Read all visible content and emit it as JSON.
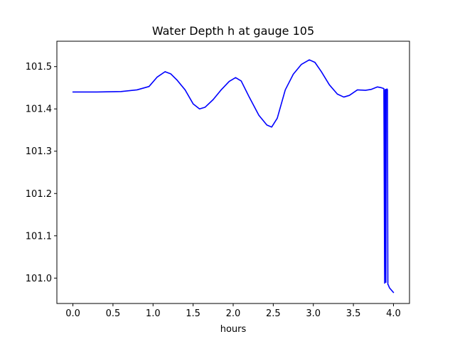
{
  "chart_data": {
    "type": "line",
    "title": "Water Depth h at gauge 105",
    "xlabel": "hours",
    "ylabel": "",
    "xlim": [
      -0.2,
      4.2
    ],
    "ylim": [
      100.94,
      101.56
    ],
    "xticks": [
      0.0,
      0.5,
      1.0,
      1.5,
      2.0,
      2.5,
      3.0,
      3.5,
      4.0
    ],
    "xtick_labels": [
      "0.0",
      "0.5",
      "1.0",
      "1.5",
      "2.0",
      "2.5",
      "3.0",
      "3.5",
      "4.0"
    ],
    "yticks": [
      101.0,
      101.1,
      101.2,
      101.3,
      101.4,
      101.5
    ],
    "ytick_labels": [
      "101.0",
      "101.1",
      "101.2",
      "101.3",
      "101.4",
      "101.5"
    ],
    "grid": false,
    "legend": "none",
    "line_color": "#0000ff",
    "series": [
      {
        "x": [
          0.0,
          0.3,
          0.6,
          0.8,
          0.95,
          1.05,
          1.15,
          1.22,
          1.3,
          1.4,
          1.5,
          1.58,
          1.65,
          1.75,
          1.85,
          1.95,
          2.03,
          2.1,
          2.2,
          2.32,
          2.42,
          2.48,
          2.55,
          2.65,
          2.75,
          2.85,
          2.95,
          3.02,
          3.1,
          3.2,
          3.3,
          3.38,
          3.45,
          3.55,
          3.65,
          3.72,
          3.8,
          3.85,
          3.88,
          3.89,
          3.895,
          3.9,
          3.905,
          3.91,
          3.92,
          3.925,
          3.93,
          3.935,
          3.95,
          4.0
        ],
        "y": [
          101.44,
          101.44,
          101.441,
          101.445,
          101.453,
          101.475,
          101.488,
          101.483,
          101.468,
          101.445,
          101.412,
          101.4,
          101.404,
          101.422,
          101.445,
          101.465,
          101.474,
          101.466,
          101.428,
          101.385,
          101.362,
          101.357,
          101.378,
          101.445,
          101.482,
          101.505,
          101.516,
          101.51,
          101.488,
          101.457,
          101.435,
          101.428,
          101.432,
          101.445,
          101.444,
          101.446,
          101.452,
          101.45,
          101.448,
          100.988,
          101.445,
          101.446,
          100.99,
          101.446,
          101.447,
          101.445,
          100.985,
          100.984,
          100.977,
          100.966
        ]
      }
    ]
  }
}
